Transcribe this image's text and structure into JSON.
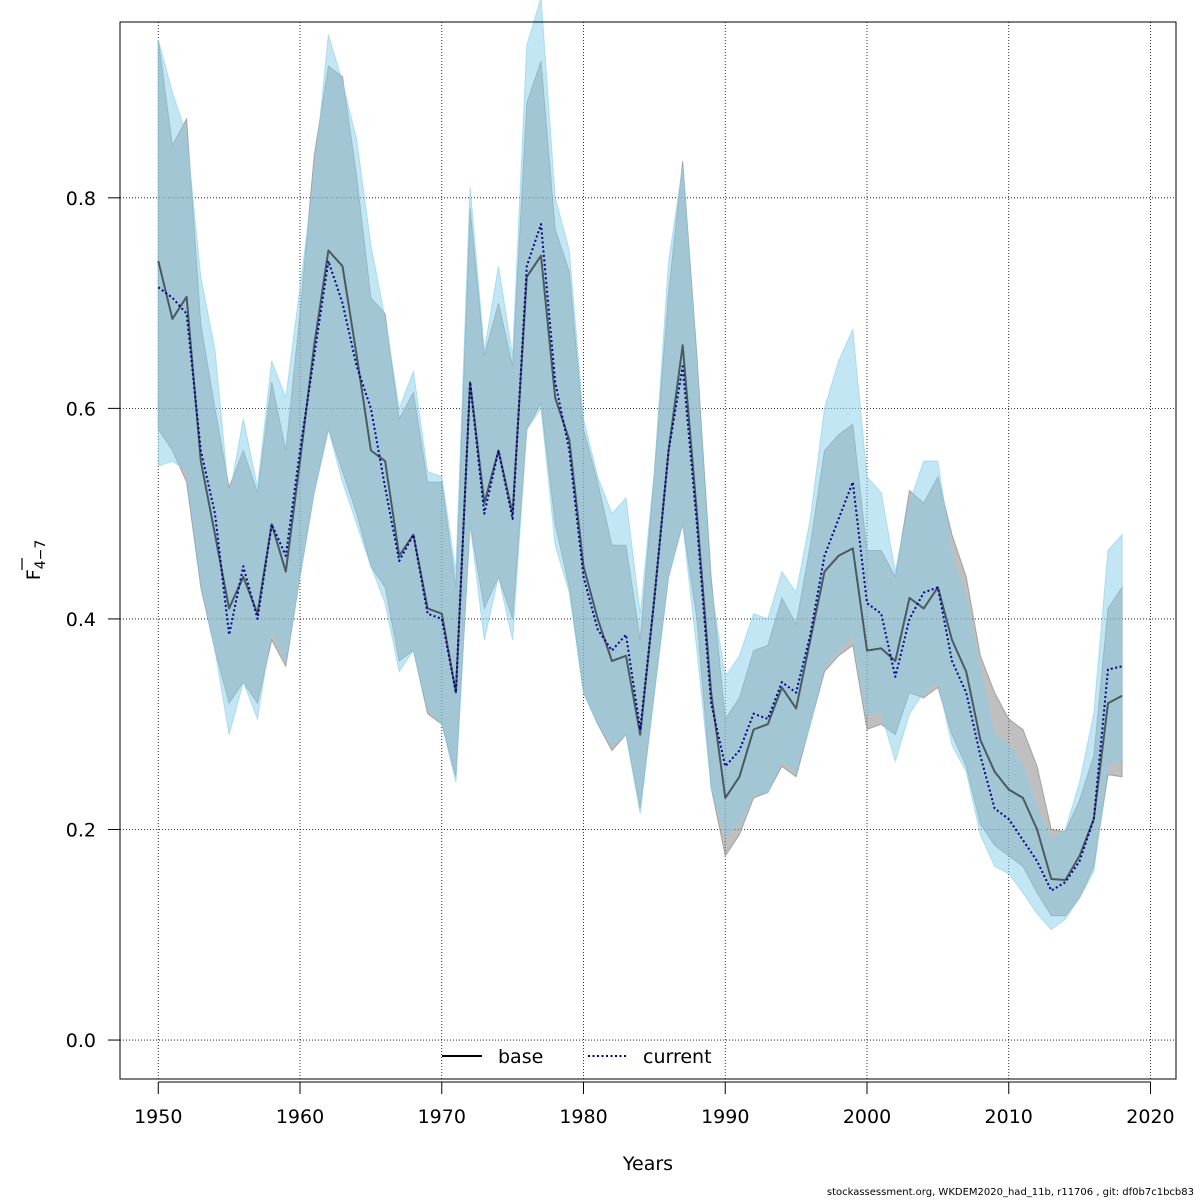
{
  "footer": "stockassessment.org, WKDEM2020_had_11b, r11706 , git: df0b7c1bcb83",
  "colors": {
    "base_band": "#7f7f7f",
    "current_band": "#87ceeb",
    "current_line": "#00008b",
    "base_line": "#000000",
    "grid": "#000000"
  },
  "chart_data": {
    "type": "line",
    "xlabel": "Years",
    "ylabel_main": "F",
    "ylabel_sub": "4−7",
    "xlim": [
      1947.3,
      2021.8
    ],
    "ylim": [
      -0.037,
      0.967
    ],
    "x_ticks": [
      1950,
      1960,
      1970,
      1980,
      1990,
      2000,
      2010,
      2020
    ],
    "x_tick_labels": [
      "1950",
      "1960",
      "1970",
      "1980",
      "1990",
      "2000",
      "2010",
      "2020"
    ],
    "y_ticks": [
      0.0,
      0.2,
      0.4,
      0.6,
      0.8
    ],
    "y_tick_labels": [
      "0.0",
      "0.2",
      "0.4",
      "0.6",
      "0.8"
    ],
    "grid": true,
    "legend_position": "bottom-center",
    "x": [
      1950,
      1951,
      1952,
      1953,
      1954,
      1955,
      1956,
      1957,
      1958,
      1959,
      1960,
      1961,
      1962,
      1963,
      1964,
      1965,
      1966,
      1967,
      1968,
      1969,
      1970,
      1971,
      1972,
      1973,
      1974,
      1975,
      1976,
      1977,
      1978,
      1979,
      1980,
      1981,
      1982,
      1983,
      1984,
      1985,
      1986,
      1987,
      1988,
      1989,
      1990,
      1991,
      1992,
      1993,
      1994,
      1995,
      1996,
      1997,
      1998,
      1999,
      2000,
      2001,
      2002,
      2003,
      2004,
      2005,
      2006,
      2007,
      2008,
      2009,
      2010,
      2011,
      2012,
      2013,
      2014,
      2015,
      2016,
      2017,
      2018
    ],
    "series": [
      {
        "name": "base",
        "style": "solid",
        "values": [
          0.74,
          0.685,
          0.706,
          0.55,
          0.48,
          0.41,
          0.44,
          0.405,
          0.49,
          0.445,
          0.55,
          0.66,
          0.75,
          0.735,
          0.65,
          0.56,
          0.55,
          0.46,
          0.48,
          0.41,
          0.405,
          0.33,
          0.625,
          0.51,
          0.56,
          0.5,
          0.725,
          0.745,
          0.61,
          0.57,
          0.45,
          0.4,
          0.36,
          0.365,
          0.29,
          0.42,
          0.56,
          0.66,
          0.5,
          0.33,
          0.23,
          0.25,
          0.295,
          0.3,
          0.335,
          0.315,
          0.38,
          0.445,
          0.46,
          0.467,
          0.37,
          0.372,
          0.36,
          0.42,
          0.41,
          0.43,
          0.38,
          0.35,
          0.285,
          0.255,
          0.238,
          0.23,
          0.2,
          0.153,
          0.152,
          0.175,
          0.21,
          0.32,
          0.327
        ],
        "lower": [
          0.58,
          0.56,
          0.53,
          0.43,
          0.37,
          0.32,
          0.34,
          0.32,
          0.38,
          0.355,
          0.44,
          0.52,
          0.58,
          0.54,
          0.5,
          0.45,
          0.43,
          0.36,
          0.37,
          0.31,
          0.3,
          0.25,
          0.49,
          0.41,
          0.44,
          0.4,
          0.58,
          0.605,
          0.49,
          0.43,
          0.33,
          0.3,
          0.275,
          0.29,
          0.22,
          0.33,
          0.44,
          0.49,
          0.4,
          0.24,
          0.175,
          0.195,
          0.23,
          0.235,
          0.26,
          0.25,
          0.3,
          0.35,
          0.365,
          0.375,
          0.295,
          0.3,
          0.29,
          0.33,
          0.325,
          0.335,
          0.29,
          0.26,
          0.205,
          0.185,
          0.175,
          0.165,
          0.14,
          0.118,
          0.118,
          0.135,
          0.165,
          0.252,
          0.25
        ],
        "upper": [
          0.95,
          0.85,
          0.875,
          0.68,
          0.6,
          0.525,
          0.56,
          0.52,
          0.625,
          0.56,
          0.69,
          0.84,
          0.925,
          0.915,
          0.82,
          0.705,
          0.69,
          0.59,
          0.615,
          0.53,
          0.53,
          0.43,
          0.79,
          0.65,
          0.7,
          0.64,
          0.89,
          0.93,
          0.77,
          0.73,
          0.58,
          0.53,
          0.47,
          0.47,
          0.38,
          0.54,
          0.71,
          0.835,
          0.65,
          0.44,
          0.305,
          0.325,
          0.37,
          0.375,
          0.42,
          0.395,
          0.47,
          0.56,
          0.575,
          0.585,
          0.465,
          0.465,
          0.44,
          0.522,
          0.51,
          0.535,
          0.48,
          0.44,
          0.365,
          0.33,
          0.305,
          0.295,
          0.26,
          0.2,
          0.198,
          0.228,
          0.27,
          0.41,
          0.43
        ]
      },
      {
        "name": "current",
        "style": "dotted",
        "values": [
          0.715,
          0.705,
          0.69,
          0.56,
          0.5,
          0.385,
          0.45,
          0.4,
          0.49,
          0.46,
          0.56,
          0.65,
          0.74,
          0.7,
          0.64,
          0.6,
          0.525,
          0.455,
          0.48,
          0.405,
          0.4,
          0.33,
          0.625,
          0.5,
          0.56,
          0.495,
          0.735,
          0.775,
          0.625,
          0.56,
          0.44,
          0.39,
          0.37,
          0.385,
          0.295,
          0.42,
          0.56,
          0.64,
          0.49,
          0.32,
          0.26,
          0.275,
          0.31,
          0.305,
          0.34,
          0.33,
          0.385,
          0.46,
          0.495,
          0.53,
          0.415,
          0.405,
          0.345,
          0.4,
          0.425,
          0.43,
          0.36,
          0.33,
          0.27,
          0.22,
          0.21,
          0.19,
          0.17,
          0.142,
          0.15,
          0.17,
          0.21,
          0.352,
          0.355
        ],
        "lower": [
          0.545,
          0.55,
          0.54,
          0.435,
          0.37,
          0.29,
          0.34,
          0.305,
          0.39,
          0.36,
          0.44,
          0.52,
          0.58,
          0.53,
          0.49,
          0.45,
          0.415,
          0.35,
          0.37,
          0.315,
          0.3,
          0.245,
          0.49,
          0.38,
          0.44,
          0.38,
          0.58,
          0.6,
          0.47,
          0.425,
          0.33,
          0.3,
          0.28,
          0.29,
          0.215,
          0.33,
          0.44,
          0.49,
          0.37,
          0.24,
          0.195,
          0.205,
          0.235,
          0.235,
          0.265,
          0.255,
          0.3,
          0.355,
          0.37,
          0.385,
          0.31,
          0.31,
          0.265,
          0.31,
          0.33,
          0.34,
          0.28,
          0.255,
          0.195,
          0.165,
          0.158,
          0.14,
          0.12,
          0.105,
          0.115,
          0.135,
          0.16,
          0.262,
          0.265
        ],
        "upper": [
          0.95,
          0.9,
          0.86,
          0.725,
          0.655,
          0.515,
          0.59,
          0.525,
          0.645,
          0.61,
          0.715,
          0.82,
          0.955,
          0.91,
          0.855,
          0.755,
          0.685,
          0.6,
          0.635,
          0.54,
          0.535,
          0.445,
          0.81,
          0.655,
          0.735,
          0.65,
          0.945,
          0.99,
          0.8,
          0.75,
          0.59,
          0.535,
          0.5,
          0.515,
          0.405,
          0.54,
          0.74,
          0.83,
          0.64,
          0.43,
          0.345,
          0.365,
          0.405,
          0.4,
          0.445,
          0.425,
          0.495,
          0.6,
          0.645,
          0.675,
          0.535,
          0.52,
          0.445,
          0.51,
          0.55,
          0.55,
          0.46,
          0.42,
          0.35,
          0.29,
          0.28,
          0.26,
          0.22,
          0.19,
          0.2,
          0.245,
          0.31,
          0.465,
          0.48
        ]
      }
    ]
  }
}
